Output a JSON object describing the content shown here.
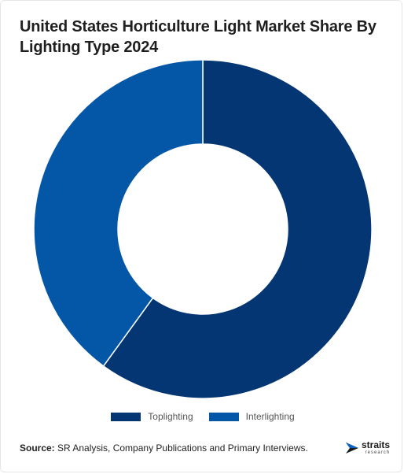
{
  "title": "United States Horticulture Light Market Share By Lighting Type 2024",
  "source": {
    "label": "Source:",
    "text": " SR Analysis, Company Publications and Primary Interviews."
  },
  "logo": {
    "name": "straits",
    "subtitle": "research",
    "icon": "straits-logo-icon"
  },
  "colors": {
    "toplighting": "#043673",
    "interlighting": "#0457a7",
    "separator": "#ffffff"
  },
  "chart_data": {
    "type": "pie",
    "variant": "donut",
    "title": "United States Horticulture Light Market Share By Lighting Type 2024",
    "categories": [
      "Toplighting",
      "Interlighting"
    ],
    "values": [
      60,
      40
    ],
    "legend_position": "bottom",
    "data_labels": false
  }
}
